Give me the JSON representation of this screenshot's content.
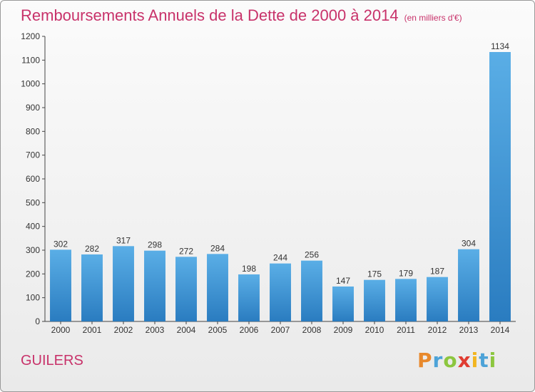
{
  "chart": {
    "title": "Remboursements Annuels de la Dette de 2000 à 2014",
    "unit": "(en milliers d'€)",
    "commune": "GUILERS",
    "logo": "Proxiti",
    "colors": {
      "title": "#c8326a",
      "bar_top": "#5aaee6",
      "bar_bottom": "#2a7cc0",
      "axis": "#444444"
    }
  },
  "chart_data": {
    "type": "bar",
    "title": "Remboursements Annuels de la Dette de 2000 à 2014",
    "subtitle": "(en milliers d'€)",
    "categories": [
      "2000",
      "2001",
      "2002",
      "2003",
      "2004",
      "2005",
      "2006",
      "2007",
      "2008",
      "2009",
      "2010",
      "2011",
      "2012",
      "2013",
      "2014"
    ],
    "values": [
      302,
      282,
      317,
      298,
      272,
      284,
      198,
      244,
      256,
      147,
      175,
      179,
      187,
      304,
      1134
    ],
    "ylim": [
      0,
      1200
    ],
    "yticks": [
      0,
      100,
      200,
      300,
      400,
      500,
      600,
      700,
      800,
      900,
      1000,
      1100,
      1200
    ],
    "grid": false,
    "legend": "none"
  }
}
